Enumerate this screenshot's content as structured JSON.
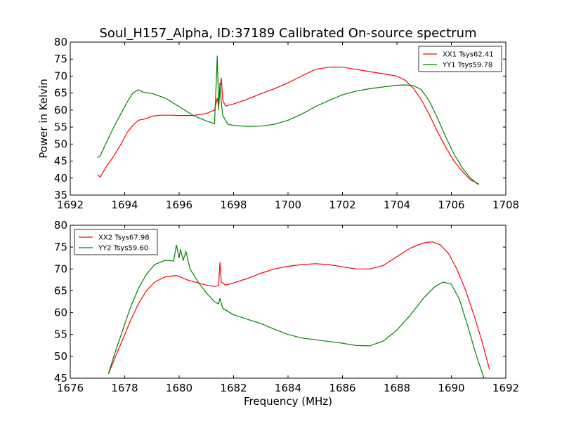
{
  "figure": {
    "title": "Soul_H157_Alpha, ID:37189 Calibrated On-source spectrum"
  },
  "chart_data": [
    {
      "type": "line",
      "title": "Soul_H157_Alpha, ID:37189 Calibrated On-source spectrum",
      "xlabel": "",
      "ylabel": "Power in Kelvin",
      "xlim": [
        1692,
        1708
      ],
      "ylim": [
        35,
        80
      ],
      "xticks": [
        1692,
        1694,
        1696,
        1698,
        1700,
        1702,
        1704,
        1706,
        1708
      ],
      "yticks": [
        35,
        40,
        45,
        50,
        55,
        60,
        65,
        70,
        75,
        80
      ],
      "grid": false,
      "legend": "upper right",
      "series": [
        {
          "name": "XX1 Tsys62.41",
          "color": "#ff0000",
          "x": [
            1693.0,
            1693.1,
            1693.3,
            1693.6,
            1693.9,
            1694.1,
            1694.3,
            1694.5,
            1694.8,
            1695.0,
            1695.3,
            1695.7,
            1696.0,
            1696.5,
            1697.0,
            1697.3,
            1697.4,
            1697.45,
            1697.5,
            1697.55,
            1697.6,
            1697.7,
            1698.0,
            1698.5,
            1699.0,
            1699.5,
            1700.0,
            1700.5,
            1701.0,
            1701.5,
            1702.0,
            1702.5,
            1703.0,
            1703.5,
            1704.0,
            1704.3,
            1704.6,
            1704.9,
            1705.2,
            1705.5,
            1705.8,
            1706.1,
            1706.4,
            1706.7,
            1707.0
          ],
          "y": [
            41.0,
            40.3,
            43.0,
            46.5,
            50.5,
            53.5,
            55.5,
            57.0,
            57.5,
            58.2,
            58.5,
            58.5,
            58.4,
            58.4,
            59.0,
            60.0,
            63.5,
            61.0,
            66.0,
            69.5,
            63.0,
            61.2,
            61.8,
            63.2,
            64.8,
            66.3,
            68.0,
            70.0,
            72.0,
            72.6,
            72.6,
            72.0,
            71.3,
            70.7,
            70.0,
            68.8,
            66.5,
            63.0,
            58.5,
            53.5,
            49.0,
            45.0,
            42.0,
            39.5,
            38.3
          ]
        },
        {
          "name": "YY1 Tsys59.78",
          "color": "#008000",
          "x": [
            1693.0,
            1693.1,
            1693.3,
            1693.6,
            1693.9,
            1694.1,
            1694.3,
            1694.5,
            1694.7,
            1695.0,
            1695.5,
            1696.0,
            1696.5,
            1697.0,
            1697.3,
            1697.4,
            1697.45,
            1697.5,
            1697.55,
            1697.6,
            1697.7,
            1697.8,
            1698.0,
            1698.5,
            1699.0,
            1699.5,
            1700.0,
            1700.5,
            1701.0,
            1701.5,
            1702.0,
            1702.5,
            1703.0,
            1703.5,
            1704.0,
            1704.3,
            1704.6,
            1704.9,
            1705.2,
            1705.5,
            1705.8,
            1706.1,
            1706.4,
            1706.7,
            1707.0
          ],
          "y": [
            46.0,
            46.5,
            50.0,
            55.0,
            59.5,
            62.5,
            65.0,
            66.0,
            65.2,
            64.9,
            63.5,
            61.0,
            58.5,
            56.8,
            56.0,
            76.0,
            60.0,
            68.0,
            62.0,
            58.5,
            57.0,
            55.8,
            55.5,
            55.2,
            55.3,
            55.8,
            57.0,
            58.8,
            61.0,
            62.8,
            64.5,
            65.6,
            66.3,
            66.8,
            67.3,
            67.4,
            67.2,
            66.0,
            62.5,
            57.5,
            52.0,
            47.0,
            43.0,
            40.0,
            38.0
          ]
        }
      ]
    },
    {
      "type": "line",
      "title": "",
      "xlabel": "Frequency (MHz)",
      "ylabel": "",
      "xlim": [
        1676,
        1692
      ],
      "ylim": [
        45,
        80
      ],
      "xticks": [
        1676,
        1678,
        1680,
        1682,
        1684,
        1686,
        1688,
        1690,
        1692
      ],
      "yticks": [
        45,
        50,
        55,
        60,
        65,
        70,
        75,
        80
      ],
      "grid": false,
      "legend": "upper left",
      "series": [
        {
          "name": "XX2 Tsys67.98",
          "color": "#ff0000",
          "x": [
            1677.4,
            1677.6,
            1677.9,
            1678.2,
            1678.5,
            1678.8,
            1679.1,
            1679.5,
            1679.9,
            1680.0,
            1680.3,
            1680.7,
            1681.0,
            1681.3,
            1681.45,
            1681.5,
            1681.55,
            1681.7,
            1682.0,
            1682.5,
            1683.0,
            1683.5,
            1684.0,
            1684.5,
            1685.0,
            1685.5,
            1686.0,
            1686.5,
            1687.0,
            1687.5,
            1688.0,
            1688.5,
            1689.0,
            1689.3,
            1689.6,
            1689.9,
            1690.2,
            1690.5,
            1690.8,
            1691.1,
            1691.4
          ],
          "y": [
            46.0,
            49.0,
            53.5,
            58.0,
            62.0,
            65.0,
            67.0,
            68.2,
            68.5,
            68.3,
            67.5,
            66.8,
            66.3,
            66.0,
            66.2,
            71.5,
            67.0,
            66.3,
            66.8,
            67.8,
            69.0,
            70.0,
            70.6,
            71.0,
            71.2,
            71.0,
            70.5,
            70.0,
            70.0,
            70.8,
            72.8,
            74.8,
            76.0,
            76.2,
            75.5,
            73.5,
            70.0,
            65.5,
            60.0,
            54.0,
            47.0
          ]
        },
        {
          "name": "YY2 Tsys59.60",
          "color": "#008000",
          "x": [
            1677.4,
            1677.6,
            1677.9,
            1678.2,
            1678.5,
            1678.8,
            1679.1,
            1679.5,
            1679.8,
            1679.9,
            1680.0,
            1680.05,
            1680.15,
            1680.25,
            1680.4,
            1680.7,
            1681.0,
            1681.3,
            1681.45,
            1681.5,
            1681.6,
            1682.0,
            1682.5,
            1683.0,
            1683.5,
            1684.0,
            1684.5,
            1685.0,
            1685.5,
            1686.0,
            1686.5,
            1687.0,
            1687.5,
            1688.0,
            1688.5,
            1689.0,
            1689.4,
            1689.7,
            1690.0,
            1690.3,
            1690.6,
            1690.9,
            1691.2
          ],
          "y": [
            46.0,
            50.0,
            55.5,
            61.0,
            65.5,
            68.8,
            71.0,
            72.0,
            71.8,
            75.5,
            72.5,
            74.5,
            72.0,
            74.0,
            70.0,
            67.0,
            64.5,
            62.5,
            62.0,
            63.3,
            61.0,
            59.5,
            58.5,
            57.5,
            56.2,
            55.0,
            54.2,
            53.8,
            53.4,
            53.0,
            52.5,
            52.4,
            53.5,
            56.0,
            59.5,
            63.5,
            66.0,
            67.0,
            66.5,
            63.0,
            57.0,
            50.5,
            45.0
          ]
        }
      ]
    }
  ]
}
